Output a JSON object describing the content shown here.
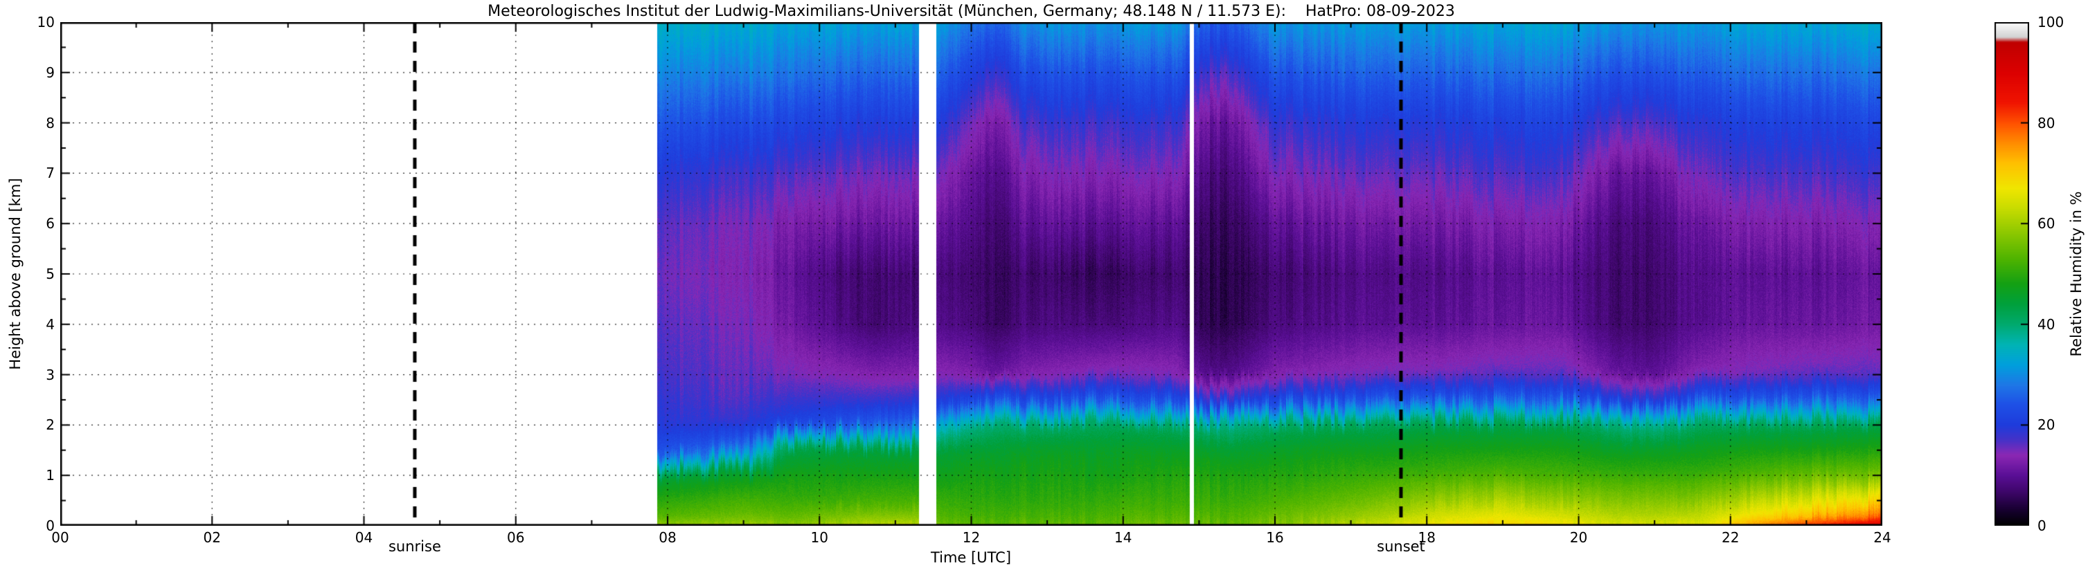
{
  "chart_data": {
    "type": "heatmap",
    "title": "Meteorologisches Institut der Ludwig-Maximilians-Universität (München, Germany; 48.148 N / 11.573 E):    HatPro: 08-09-2023",
    "xlabel": "Time [UTC]",
    "ylabel": "Height above ground [km]",
    "colorbar_label": "Relative Humidity in %",
    "x_range": [
      0,
      24
    ],
    "y_range": [
      0,
      10
    ],
    "grid_on": true,
    "x_ticks": [
      {
        "value": 0,
        "label": "00"
      },
      {
        "value": 2,
        "label": "02"
      },
      {
        "value": 4,
        "label": "04"
      },
      {
        "value": 6,
        "label": "06"
      },
      {
        "value": 8,
        "label": "08"
      },
      {
        "value": 10,
        "label": "10"
      },
      {
        "value": 12,
        "label": "12"
      },
      {
        "value": 14,
        "label": "14"
      },
      {
        "value": 16,
        "label": "16"
      },
      {
        "value": 18,
        "label": "18"
      },
      {
        "value": 20,
        "label": "20"
      },
      {
        "value": 22,
        "label": "22"
      },
      {
        "value": 24,
        "label": "24"
      }
    ],
    "y_ticks": [
      {
        "value": 0,
        "label": "0"
      },
      {
        "value": 1,
        "label": "1"
      },
      {
        "value": 2,
        "label": "2"
      },
      {
        "value": 3,
        "label": "3"
      },
      {
        "value": 4,
        "label": "4"
      },
      {
        "value": 5,
        "label": "5"
      },
      {
        "value": 6,
        "label": "6"
      },
      {
        "value": 7,
        "label": "7"
      },
      {
        "value": 8,
        "label": "8"
      },
      {
        "value": 9,
        "label": "9"
      },
      {
        "value": 10,
        "label": "10"
      }
    ],
    "colorbar_ticks": [
      {
        "value": 0,
        "label": "0"
      },
      {
        "value": 20,
        "label": "20"
      },
      {
        "value": 40,
        "label": "40"
      },
      {
        "value": 60,
        "label": "60"
      },
      {
        "value": 80,
        "label": "80"
      },
      {
        "value": 100,
        "label": "100"
      }
    ],
    "annotations": [
      {
        "type": "vline",
        "style": "dashed",
        "x": 4.67,
        "label": "sunrise"
      },
      {
        "type": "vline",
        "style": "dashed",
        "x": 17.66,
        "label": "sunset"
      }
    ],
    "missing_data_intervals_utc": [
      [
        0,
        7.86
      ],
      [
        11.31,
        11.54
      ],
      [
        14.88,
        14.93
      ]
    ],
    "colormap_stops": [
      [
        0,
        "#000000"
      ],
      [
        3,
        "#16002e"
      ],
      [
        7,
        "#41076e"
      ],
      [
        10,
        "#5a0f96"
      ],
      [
        14,
        "#8c28b4"
      ],
      [
        17,
        "#4632c8"
      ],
      [
        20,
        "#1e3cdc"
      ],
      [
        24,
        "#1e50e6"
      ],
      [
        28,
        "#1e78e6"
      ],
      [
        32,
        "#00a0dc"
      ],
      [
        36,
        "#00b4b4"
      ],
      [
        40,
        "#00aa6e"
      ],
      [
        44,
        "#00a03c"
      ],
      [
        48,
        "#14a014"
      ],
      [
        53,
        "#50b400"
      ],
      [
        58,
        "#8cc800"
      ],
      [
        63,
        "#c8dc00"
      ],
      [
        67,
        "#f0e600"
      ],
      [
        72,
        "#ffc000"
      ],
      [
        76,
        "#ff8c00"
      ],
      [
        80,
        "#ff5000"
      ],
      [
        84,
        "#f01400"
      ],
      [
        90,
        "#dc0000"
      ],
      [
        96,
        "#c00000"
      ],
      [
        97,
        "#d2d2d2"
      ],
      [
        99,
        "#efefef"
      ],
      [
        100,
        "#ffffff"
      ]
    ],
    "grid": {
      "heights_km": [
        0,
        0.2,
        0.5,
        1,
        1.5,
        2,
        2.5,
        3,
        4,
        5,
        6,
        7,
        8,
        9,
        10
      ],
      "times_utc": [
        7.9,
        9.0,
        9.6,
        10.2,
        10.7,
        11.33,
        11.56,
        12.0,
        12.3,
        12.7,
        13.3,
        14.0,
        14.7,
        15.1,
        15.4,
        16.0,
        16.7,
        17.4,
        18.2,
        19.0,
        19.8,
        20.5,
        21.0,
        21.6,
        22.3,
        23.1,
        24.0
      ],
      "rh_percent": [
        [
          58,
          53,
          50,
          44,
          24,
          19,
          18,
          17,
          16,
          15,
          16,
          19,
          24,
          29,
          34
        ],
        [
          60,
          55,
          52,
          46,
          28,
          19,
          17,
          16,
          15,
          14,
          15,
          18,
          23,
          29,
          34
        ],
        [
          58,
          54,
          51,
          48,
          43,
          22,
          18,
          15,
          12,
          11,
          13,
          17,
          22,
          28,
          33
        ],
        [
          60,
          56,
          51,
          48,
          44,
          24,
          18,
          14,
          9,
          8,
          12,
          16,
          21,
          27,
          33
        ],
        [
          62,
          57,
          52,
          48,
          44,
          26,
          18,
          13,
          7,
          7,
          11,
          15,
          20,
          26,
          32
        ],
        [
          62,
          57,
          52,
          48,
          44,
          28,
          19,
          13,
          8,
          7,
          11,
          15,
          20,
          26,
          32
        ],
        [
          55,
          53,
          51,
          47,
          44,
          34,
          20,
          14,
          9,
          8,
          11,
          15,
          20,
          26,
          32
        ],
        [
          54,
          52,
          50,
          48,
          45,
          38,
          22,
          13,
          8,
          7,
          9,
          11,
          15,
          21,
          28
        ],
        [
          54,
          52,
          50,
          48,
          45,
          40,
          24,
          11,
          6,
          6,
          7,
          9,
          12,
          18,
          26
        ],
        [
          54,
          52,
          50,
          48,
          46,
          40,
          23,
          13,
          8,
          7,
          10,
          13,
          17,
          23,
          30
        ],
        [
          54,
          52,
          50,
          48,
          46,
          41,
          24,
          14,
          8,
          6,
          10,
          14,
          18,
          24,
          31
        ],
        [
          55,
          53,
          51,
          48,
          46,
          42,
          25,
          15,
          8,
          6,
          10,
          14,
          18,
          24,
          31
        ],
        [
          55,
          53,
          51,
          49,
          46,
          41,
          24,
          14,
          9,
          7,
          10,
          14,
          18,
          24,
          31
        ],
        [
          55,
          53,
          51,
          49,
          46,
          39,
          19,
          9,
          5,
          5,
          6,
          8,
          11,
          17,
          25
        ],
        [
          55,
          53,
          51,
          49,
          45,
          38,
          18,
          9,
          5,
          5,
          6,
          8,
          11,
          17,
          25
        ],
        [
          57,
          55,
          52,
          49,
          46,
          41,
          23,
          13,
          8,
          7,
          10,
          14,
          18,
          24,
          31
        ],
        [
          60,
          57,
          54,
          50,
          47,
          42,
          24,
          14,
          9,
          8,
          11,
          15,
          19,
          25,
          31
        ],
        [
          64,
          60,
          56,
          51,
          47,
          42,
          25,
          15,
          10,
          9,
          12,
          16,
          20,
          26,
          32
        ],
        [
          68,
          64,
          59,
          52,
          48,
          43,
          25,
          15,
          10,
          9,
          12,
          16,
          20,
          26,
          32
        ],
        [
          70,
          66,
          61,
          53,
          48,
          43,
          26,
          16,
          11,
          10,
          13,
          17,
          21,
          27,
          33
        ],
        [
          68,
          64,
          59,
          52,
          48,
          43,
          26,
          16,
          11,
          10,
          13,
          17,
          21,
          27,
          33
        ],
        [
          65,
          61,
          57,
          51,
          46,
          39,
          20,
          11,
          7,
          7,
          8,
          11,
          17,
          24,
          31
        ],
        [
          65,
          61,
          57,
          51,
          46,
          38,
          19,
          10,
          7,
          7,
          8,
          11,
          17,
          24,
          31
        ],
        [
          66,
          62,
          57,
          51,
          47,
          41,
          24,
          14,
          10,
          10,
          12,
          16,
          20,
          26,
          32
        ],
        [
          75,
          68,
          62,
          53,
          48,
          42,
          25,
          15,
          11,
          10,
          13,
          17,
          21,
          27,
          33
        ],
        [
          83,
          72,
          65,
          55,
          48,
          42,
          26,
          16,
          11,
          10,
          13,
          17,
          21,
          27,
          33
        ],
        [
          90,
          78,
          70,
          56,
          49,
          43,
          26,
          16,
          12,
          11,
          14,
          18,
          22,
          28,
          34
        ]
      ]
    }
  }
}
